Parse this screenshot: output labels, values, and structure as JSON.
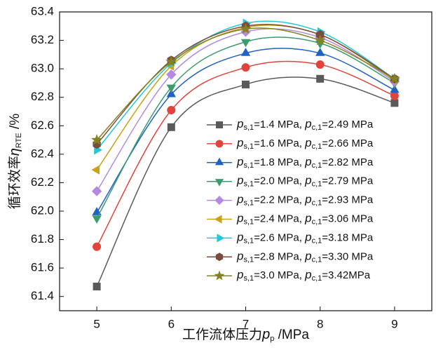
{
  "chart_data": {
    "type": "line",
    "x_label": "工作流体压力pp /MPa",
    "y_label": "循环效率ηRTE /%",
    "x": [
      5,
      6,
      7,
      8,
      9
    ],
    "xlim": [
      4.5,
      9.5
    ],
    "xticks": [
      5,
      6,
      7,
      8,
      9
    ],
    "ylim": [
      61.3,
      63.4
    ],
    "yticks": [
      {
        "value": 61.4,
        "label": "61.4"
      },
      {
        "value": 61.6,
        "label": "61.6"
      },
      {
        "value": 61.8,
        "label": "61.8"
      },
      {
        "value": 62.0,
        "label": "62.0"
      },
      {
        "value": 62.2,
        "label": "62.2"
      },
      {
        "value": 62.4,
        "label": "62.4"
      },
      {
        "value": 62.6,
        "label": "62.6"
      },
      {
        "value": 62.8,
        "label": "62.8"
      },
      {
        "value": 63.0,
        "label": "63.0"
      },
      {
        "value": 63.2,
        "label": "63.2"
      },
      {
        "value": 63.4,
        "label": "63.4"
      }
    ],
    "series": [
      {
        "name": "ps,1=1.4 MPa, pc,1=2.49 MPa",
        "color": "#5a5a5a",
        "marker": "square",
        "values": [
          61.47,
          62.59,
          62.89,
          62.93,
          62.76
        ]
      },
      {
        "name": "ps,1=1.6 MPa, pc,1=2.66 MPa",
        "color": "#e0443c",
        "marker": "circle",
        "values": [
          61.75,
          62.71,
          63.01,
          63.03,
          62.81
        ]
      },
      {
        "name": "ps,1=1.8 MPa, pc,1=2.82 MPa",
        "color": "#1f62c4",
        "marker": "triangle-up",
        "values": [
          61.99,
          62.82,
          63.11,
          63.11,
          62.85
        ]
      },
      {
        "name": "ps,1=2.0 MPa, pc,1=2.79 MPa",
        "color": "#3c9c6c",
        "marker": "triangle-down",
        "values": [
          61.95,
          62.87,
          63.19,
          63.18,
          62.9
        ]
      },
      {
        "name": "ps,1=2.2 MPa, pc,1=2.93 MPa",
        "color": "#b48ae0",
        "marker": "diamond",
        "values": [
          62.14,
          62.96,
          63.26,
          63.22,
          62.91
        ]
      },
      {
        "name": "ps,1=2.4 MPa, pc,1=3.06 MPa",
        "color": "#c9a314",
        "marker": "triangle-left",
        "values": [
          62.29,
          63.02,
          63.29,
          63.24,
          62.92
        ]
      },
      {
        "name": "ps,1=2.6 MPa, pc,1=3.18 MPa",
        "color": "#22c8d8",
        "marker": "triangle-right",
        "values": [
          62.43,
          63.04,
          63.32,
          63.26,
          62.93
        ]
      },
      {
        "name": "ps,1=2.8 MPa, pc,1=3.30 MPa",
        "color": "#7b4b3e",
        "marker": "hexagon",
        "values": [
          62.47,
          63.06,
          63.3,
          63.24,
          62.93
        ]
      },
      {
        "name": "ps,1=3.0 MPa, pc,1=3.42MPa",
        "color": "#838320",
        "marker": "star",
        "values": [
          62.5,
          63.05,
          63.28,
          63.2,
          62.93
        ]
      }
    ]
  }
}
